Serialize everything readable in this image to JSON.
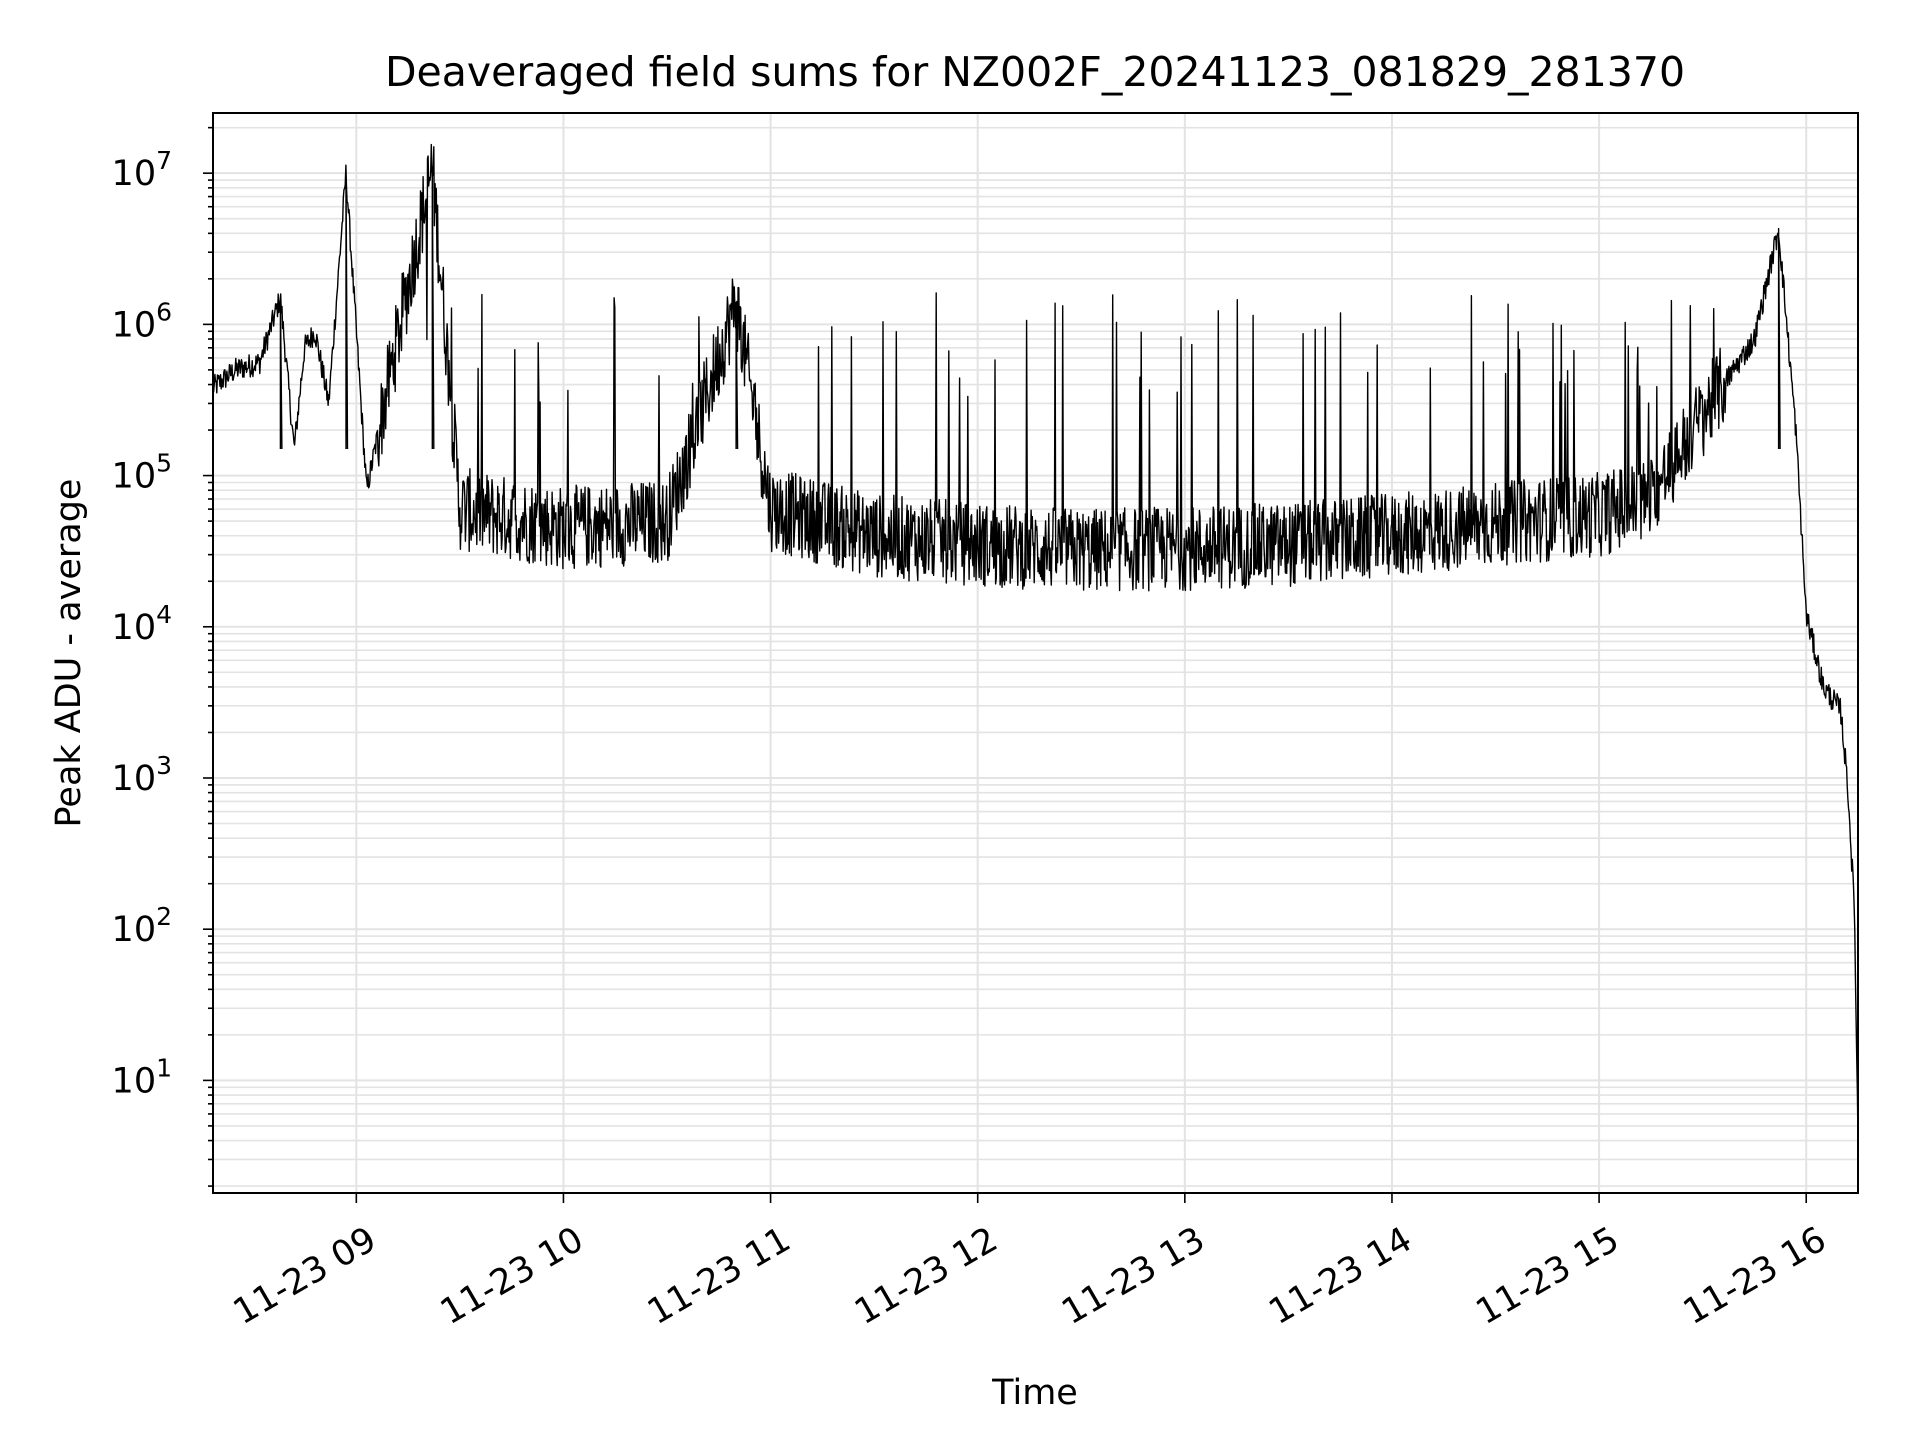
{
  "chart_data": {
    "type": "line",
    "title": "Deaveraged field sums for NZ002F_20241123_081829_281370",
    "xlabel": "Time",
    "ylabel": "Peak ADU - average",
    "yscale": "log",
    "xlim": [
      "2024-11-23T08:18:29",
      "2024-11-23T16:15:00"
    ],
    "ylim": [
      1.8,
      25000000
    ],
    "grid": "on (major and minor, light gray)",
    "line_color": "#000000",
    "x_ticks": [
      {
        "value": "2024-11-23T09:00",
        "label": "11-23 09"
      },
      {
        "value": "2024-11-23T10:00",
        "label": "11-23 10"
      },
      {
        "value": "2024-11-23T11:00",
        "label": "11-23 11"
      },
      {
        "value": "2024-11-23T12:00",
        "label": "11-23 12"
      },
      {
        "value": "2024-11-23T13:00",
        "label": "11-23 13"
      },
      {
        "value": "2024-11-23T14:00",
        "label": "11-23 14"
      },
      {
        "value": "2024-11-23T15:00",
        "label": "11-23 15"
      },
      {
        "value": "2024-11-23T16:00",
        "label": "11-23 16"
      }
    ],
    "y_ticks": [
      {
        "value": 10,
        "base": "10",
        "exp": "1"
      },
      {
        "value": 100,
        "base": "10",
        "exp": "2"
      },
      {
        "value": 1000,
        "base": "10",
        "exp": "3"
      },
      {
        "value": 10000,
        "base": "10",
        "exp": "4"
      },
      {
        "value": 100000,
        "base": "10",
        "exp": "5"
      },
      {
        "value": 1000000,
        "base": "10",
        "exp": "6"
      },
      {
        "value": 10000000,
        "base": "10",
        "exp": "7"
      }
    ],
    "series": [
      {
        "points": [
          {
            "x": "2024-11-23T08:18:29",
            "y": 380000
          },
          {
            "x": "2024-11-23T08:25",
            "y": 500000
          },
          {
            "x": "2024-11-23T08:32",
            "y": 560000
          },
          {
            "x": "2024-11-23T08:38",
            "y": 1500000
          },
          {
            "x": "2024-11-23T08:42",
            "y": 150000
          },
          {
            "x": "2024-11-23T08:45",
            "y": 700000
          },
          {
            "x": "2024-11-23T08:48",
            "y": 900000
          },
          {
            "x": "2024-11-23T08:52",
            "y": 300000
          },
          {
            "x": "2024-11-23T08:57",
            "y": 10000000
          },
          {
            "x": "2024-11-23T09:03",
            "y": 80000
          },
          {
            "x": "2024-11-23T09:22",
            "y": 11000000
          },
          {
            "x": "2024-11-23T09:30",
            "y": 60000
          },
          {
            "x": "2024-11-23T10:00",
            "y": 45000
          },
          {
            "x": "2024-11-23T10:30",
            "y": 50000
          },
          {
            "x": "2024-11-23T10:50",
            "y": 1400000
          },
          {
            "x": "2024-11-23T11:00",
            "y": 60000
          },
          {
            "x": "2024-11-23T11:30",
            "y": 40000
          },
          {
            "x": "2024-11-23T12:00",
            "y": 35000
          },
          {
            "x": "2024-11-23T12:30",
            "y": 32000
          },
          {
            "x": "2024-11-23T13:00",
            "y": 33000
          },
          {
            "x": "2024-11-23T13:30",
            "y": 35000
          },
          {
            "x": "2024-11-23T14:00",
            "y": 40000
          },
          {
            "x": "2024-11-23T14:30",
            "y": 48000
          },
          {
            "x": "2024-11-23T15:00",
            "y": 55000
          },
          {
            "x": "2024-11-23T15:15",
            "y": 70000
          },
          {
            "x": "2024-11-23T15:30",
            "y": 250000
          },
          {
            "x": "2024-11-23T15:45",
            "y": 800000
          },
          {
            "x": "2024-11-23T15:52",
            "y": 4300000
          },
          {
            "x": "2024-11-23T15:57",
            "y": 200000
          },
          {
            "x": "2024-11-23T16:00",
            "y": 12000
          },
          {
            "x": "2024-11-23T16:05",
            "y": 4000
          },
          {
            "x": "2024-11-23T16:10",
            "y": 2800
          },
          {
            "x": "2024-11-23T16:12",
            "y": 900
          },
          {
            "x": "2024-11-23T16:14",
            "y": 130
          },
          {
            "x": "2024-11-23T16:15",
            "y": 4
          }
        ]
      }
    ]
  }
}
